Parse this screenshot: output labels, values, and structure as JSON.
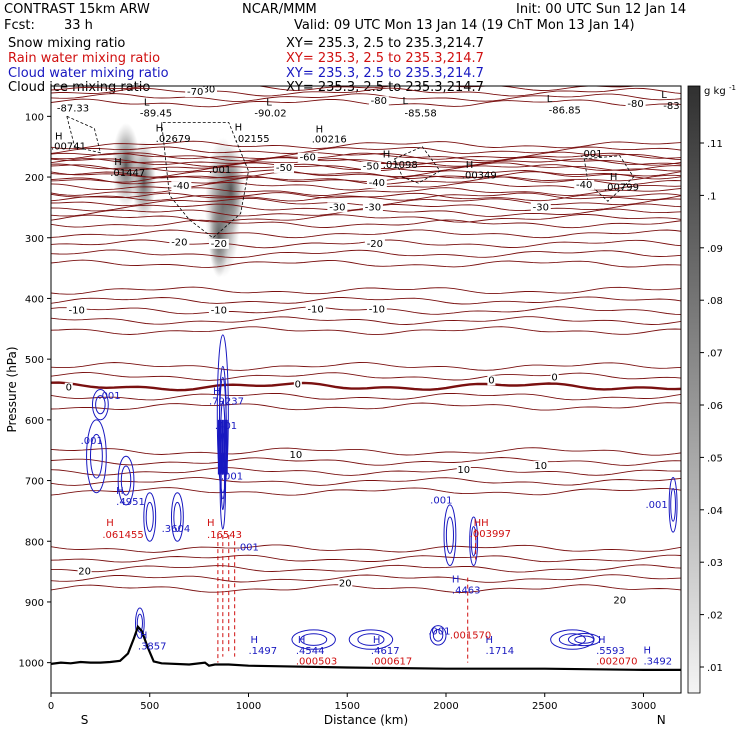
{
  "header": {
    "model": "CONTRAST 15km ARW",
    "org": "NCAR/MMM",
    "init": "Init: 00 UTC Sun 12 Jan 14",
    "fcst_label": "Fcst:",
    "fcst_value": "33 h",
    "valid": "Valid: 09 UTC Mon 13 Jan 14 (19 ChT Mon 13 Jan 14)",
    "fields": [
      {
        "name": "Snow mixing ratio",
        "xy": "XY= 235.3,  2.5 to 235.3,214.7",
        "color": "#000000"
      },
      {
        "name": "Rain water mixing ratio",
        "xy": "XY= 235.3,  2.5 to 235.3,214.7",
        "color": "#d01010"
      },
      {
        "name": "Cloud water mixing ratio",
        "xy": "XY= 235.3,  2.5 to 235.3,214.7",
        "color": "#1818c0"
      },
      {
        "name": "Cloud ice mixing ratio",
        "xy": "XY= 235.3,  2.5 to 235.3,214.7",
        "color": "#000000"
      }
    ]
  },
  "chart_data": {
    "type": "cross-section",
    "xlabel": "Distance (km)",
    "ylabel": "Pressure (hPa)",
    "x_ticks": [
      0,
      500,
      1000,
      1500,
      2000,
      2500,
      3000
    ],
    "xlim": [
      0,
      3190
    ],
    "y_ticks": [
      100,
      200,
      300,
      400,
      500,
      600,
      700,
      800,
      900,
      1000
    ],
    "ylim": [
      50,
      1050
    ],
    "x_end_labels": {
      "left": "S",
      "right": "N"
    },
    "colorbar": {
      "unit": "g kg",
      "unit_exp": "-1",
      "ticks": [
        ".11",
        ".1",
        ".09",
        ".08",
        ".07",
        ".06",
        ".05",
        ".04",
        ".03",
        ".02",
        ".01"
      ]
    },
    "temperature_isotherms": [
      {
        "label": "-80",
        "p": 60
      },
      {
        "label": "-60",
        "p": 165
      },
      {
        "label": "-50",
        "p": 185
      },
      {
        "label": "-40",
        "p": 215
      },
      {
        "label": "-30",
        "p": 250
      },
      {
        "label": "-20",
        "p": 310
      },
      {
        "label": "-10",
        "p": 420
      },
      {
        "label": "0",
        "p": 545
      },
      {
        "label": "10",
        "p": 685
      },
      {
        "label": "20",
        "p": 845
      }
    ],
    "temp_labels": [
      {
        "t": "-80",
        "x": 790,
        "p": 56
      },
      {
        "t": "-80",
        "x": 1660,
        "p": 75
      },
      {
        "t": "-80",
        "x": 2960,
        "p": 80
      },
      {
        "t": "-70",
        "x": 730,
        "p": 60
      },
      {
        "t": "-60",
        "x": 1300,
        "p": 168
      },
      {
        "t": "-50",
        "x": 1180,
        "p": 185
      },
      {
        "t": "-50",
        "x": 1620,
        "p": 183
      },
      {
        "t": "-40",
        "x": 660,
        "p": 215
      },
      {
        "t": "-40",
        "x": 1650,
        "p": 210
      },
      {
        "t": "-40",
        "x": 2700,
        "p": 213
      },
      {
        "t": "-30",
        "x": 1450,
        "p": 250
      },
      {
        "t": "-30",
        "x": 1630,
        "p": 250
      },
      {
        "t": "-30",
        "x": 2480,
        "p": 250
      },
      {
        "t": "-20",
        "x": 650,
        "p": 308
      },
      {
        "t": "-20",
        "x": 850,
        "p": 310
      },
      {
        "t": "-20",
        "x": 1640,
        "p": 310
      },
      {
        "t": "-10",
        "x": 130,
        "p": 420
      },
      {
        "t": "-10",
        "x": 850,
        "p": 420
      },
      {
        "t": "-10",
        "x": 1340,
        "p": 418
      },
      {
        "t": "-10",
        "x": 1650,
        "p": 418
      },
      {
        "t": "0",
        "x": 90,
        "p": 547
      },
      {
        "t": "0",
        "x": 1250,
        "p": 542
      },
      {
        "t": "0",
        "x": 2230,
        "p": 535
      },
      {
        "t": "0",
        "x": 2550,
        "p": 530
      },
      {
        "t": "10",
        "x": 1240,
        "p": 658
      },
      {
        "t": "10",
        "x": 2090,
        "p": 683
      },
      {
        "t": "10",
        "x": 2480,
        "p": 676
      },
      {
        "t": "20",
        "x": 170,
        "p": 850
      },
      {
        "t": "20",
        "x": 1490,
        "p": 870
      },
      {
        "t": "20",
        "x": 2880,
        "p": 898
      }
    ],
    "extrema_labels": [
      {
        "t": "-87.33",
        "x": 30,
        "p": 92,
        "c": "#000000"
      },
      {
        "t": "L",
        "x": 470,
        "p": 82,
        "c": "#000000"
      },
      {
        "t": "-89.45",
        "x": 450,
        "p": 100,
        "c": "#000000"
      },
      {
        "t": "L",
        "x": 1090,
        "p": 82,
        "c": "#000000"
      },
      {
        "t": "-90.02",
        "x": 1030,
        "p": 100,
        "c": "#000000"
      },
      {
        "t": "L",
        "x": 1780,
        "p": 80,
        "c": "#000000"
      },
      {
        "t": "-85.58",
        "x": 1790,
        "p": 100,
        "c": "#000000"
      },
      {
        "t": "L",
        "x": 2510,
        "p": 76,
        "c": "#000000"
      },
      {
        "t": "-86.85",
        "x": 2520,
        "p": 95,
        "c": "#000000"
      },
      {
        "t": "L",
        "x": 3090,
        "p": 70,
        "c": "#000000"
      },
      {
        "t": "-83.",
        "x": 3100,
        "p": 88,
        "c": "#000000"
      },
      {
        "t": "H",
        "x": 20,
        "p": 138,
        "c": "#000000"
      },
      {
        "t": ".00741",
        "x": 0,
        "p": 155,
        "c": "#000000"
      },
      {
        "t": "H",
        "x": 530,
        "p": 125,
        "c": "#000000"
      },
      {
        "t": ".02679",
        "x": 530,
        "p": 142,
        "c": "#000000"
      },
      {
        "t": "H",
        "x": 930,
        "p": 123,
        "c": "#000000"
      },
      {
        "t": ".02155",
        "x": 930,
        "p": 142,
        "c": "#000000"
      },
      {
        "t": "H",
        "x": 1340,
        "p": 127,
        "c": "#000000"
      },
      {
        "t": ".00216",
        "x": 1320,
        "p": 143,
        "c": "#000000"
      },
      {
        "t": "H",
        "x": 1680,
        "p": 168,
        "c": "#000000"
      },
      {
        "t": ".01098",
        "x": 1680,
        "p": 185,
        "c": "#000000"
      },
      {
        "t": "H",
        "x": 2100,
        "p": 185,
        "c": "#000000"
      },
      {
        "t": ".00349",
        "x": 2080,
        "p": 202,
        "c": "#000000"
      },
      {
        "t": ".001",
        "x": 2680,
        "p": 167,
        "c": "#000000"
      },
      {
        "t": "H",
        "x": 2830,
        "p": 205,
        "c": "#000000"
      },
      {
        "t": ".00799",
        "x": 2800,
        "p": 222,
        "c": "#000000"
      },
      {
        "t": "H",
        "x": 320,
        "p": 180,
        "c": "#000000"
      },
      {
        "t": ".01447",
        "x": 300,
        "p": 198,
        "c": "#000000"
      },
      {
        "t": ".001",
        "x": 800,
        "p": 193,
        "c": "#000000"
      },
      {
        "t": ".001",
        "x": 240,
        "p": 566,
        "c": "#1818c0"
      },
      {
        "t": ".001",
        "x": 150,
        "p": 640,
        "c": "#1818c0"
      },
      {
        "t": "H",
        "x": 820,
        "p": 558,
        "c": "#1818c0"
      },
      {
        "t": ".79237",
        "x": 800,
        "p": 575,
        "c": "#1818c0"
      },
      {
        "t": ".401",
        "x": 830,
        "p": 615,
        "c": "#1818c0"
      },
      {
        "t": ".001",
        "x": 860,
        "p": 698,
        "c": "#1818c0"
      },
      {
        "t": "H",
        "x": 330,
        "p": 722,
        "c": "#1818c0"
      },
      {
        "t": ".4951",
        "x": 330,
        "p": 740,
        "c": "#1818c0"
      },
      {
        "t": ".3604",
        "x": 560,
        "p": 785,
        "c": "#1818c0"
      },
      {
        "t": ".001",
        "x": 940,
        "p": 815,
        "c": "#1818c0"
      },
      {
        "t": ".001",
        "x": 1920,
        "p": 738,
        "c": "#1818c0"
      },
      {
        "t": ".001",
        "x": 3010,
        "p": 745,
        "c": "#1818c0"
      },
      {
        "t": "H",
        "x": 2030,
        "p": 868,
        "c": "#1818c0"
      },
      {
        "t": ".4463",
        "x": 2030,
        "p": 886,
        "c": "#1818c0"
      },
      {
        "t": "H",
        "x": 450,
        "p": 960,
        "c": "#1818c0"
      },
      {
        "t": ".3857",
        "x": 440,
        "p": 978,
        "c": "#1818c0"
      },
      {
        "t": "H",
        "x": 1010,
        "p": 968,
        "c": "#1818c0"
      },
      {
        "t": ".1497",
        "x": 1000,
        "p": 986,
        "c": "#1818c0"
      },
      {
        "t": "H",
        "x": 1250,
        "p": 968,
        "c": "#1818c0"
      },
      {
        "t": ".4544",
        "x": 1240,
        "p": 986,
        "c": "#1818c0"
      },
      {
        "t": "H",
        "x": 1630,
        "p": 968,
        "c": "#1818c0"
      },
      {
        "t": ".4617",
        "x": 1620,
        "p": 986,
        "c": "#1818c0"
      },
      {
        "t": ".001",
        "x": 1910,
        "p": 954,
        "c": "#1818c0"
      },
      {
        "t": "H",
        "x": 2200,
        "p": 968,
        "c": "#1818c0"
      },
      {
        "t": ".1714",
        "x": 2200,
        "p": 986,
        "c": "#1818c0"
      },
      {
        "t": "H",
        "x": 2770,
        "p": 968,
        "c": "#1818c0"
      },
      {
        "t": ".5593",
        "x": 2760,
        "p": 986,
        "c": "#1818c0"
      },
      {
        "t": "H",
        "x": 3000,
        "p": 985,
        "c": "#1818c0"
      },
      {
        "t": ".3492",
        "x": 3000,
        "p": 1003,
        "c": "#1818c0"
      },
      {
        "t": "H",
        "x": 280,
        "p": 775,
        "c": "#d01010"
      },
      {
        "t": ".061455",
        "x": 260,
        "p": 795,
        "c": "#d01010"
      },
      {
        "t": "H",
        "x": 790,
        "p": 775,
        "c": "#d01010"
      },
      {
        "t": ".16543",
        "x": 790,
        "p": 795,
        "c": "#d01010"
      },
      {
        "t": "HH",
        "x": 2140,
        "p": 775,
        "c": "#d01010"
      },
      {
        "t": ".003997",
        "x": 2120,
        "p": 793,
        "c": "#d01010"
      },
      {
        "t": ".001570",
        "x": 2020,
        "p": 960,
        "c": "#d01010"
      },
      {
        "t": ".000503",
        "x": 1240,
        "p": 1003,
        "c": "#d01010"
      },
      {
        "t": ".000617",
        "x": 1620,
        "p": 1003,
        "c": "#d01010"
      },
      {
        "t": ".002070",
        "x": 2760,
        "p": 1003,
        "c": "#d01010"
      }
    ],
    "terrain": {
      "x": [
        0,
        50,
        100,
        150,
        200,
        250,
        300,
        350,
        390,
        420,
        440,
        460,
        490,
        520,
        560,
        700,
        780,
        800,
        830,
        900,
        1000,
        1500,
        2000,
        2500,
        3000,
        3190
      ],
      "p": [
        1002,
        1000,
        1001,
        999,
        1000,
        1000,
        999,
        997,
        985,
        960,
        941,
        948,
        975,
        998,
        1001,
        1003,
        1000,
        1005,
        1003,
        1003,
        1005,
        1008,
        1010,
        1010,
        1012,
        1012
      ]
    }
  }
}
